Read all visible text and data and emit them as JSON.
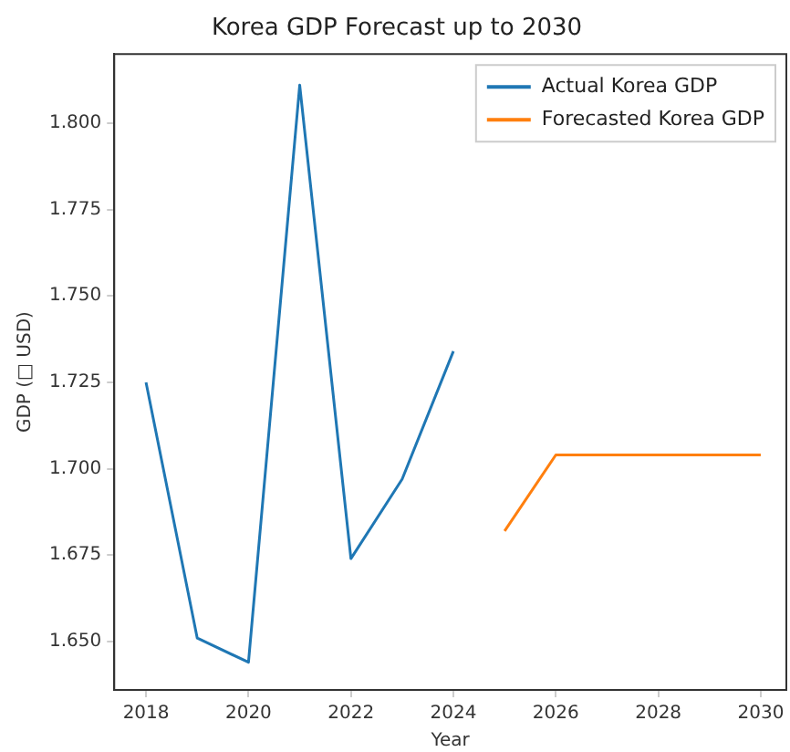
{
  "chart_data": {
    "type": "line",
    "title": "Korea GDP Forecast up to 2030",
    "xlabel": "Year",
    "ylabel": "GDP (□ USD)",
    "xlim": [
      2017.38,
      2030.5
    ],
    "xticks": [
      2018,
      2020,
      2022,
      2024,
      2026,
      2028,
      2030
    ],
    "ylim": [
      1.636,
      1.82
    ],
    "yticks": [
      {
        "value": 1.65,
        "label": "1.650"
      },
      {
        "value": 1.675,
        "label": "1.675"
      },
      {
        "value": 1.7,
        "label": "1.700"
      },
      {
        "value": 1.725,
        "label": "1.725"
      },
      {
        "value": 1.75,
        "label": "1.750"
      },
      {
        "value": 1.775,
        "label": "1.775"
      },
      {
        "value": 1.8,
        "label": "1.800"
      }
    ],
    "grid": false,
    "legend": "top right",
    "marker": "none",
    "line_style": "solid",
    "series": [
      {
        "name": "Actual Korea GDP",
        "color": "#1f77b4",
        "x": [
          2018,
          2019,
          2020,
          2021,
          2022,
          2023,
          2024
        ],
        "values": [
          1.725,
          1.651,
          1.644,
          1.811,
          1.674,
          1.697,
          1.734
        ]
      },
      {
        "name": "Forecasted Korea GDP",
        "color": "#ff7f0e",
        "x": [
          2025,
          2026,
          2027,
          2028,
          2029,
          2030
        ],
        "values": [
          1.682,
          1.704,
          1.704,
          1.704,
          1.704,
          1.704
        ]
      }
    ]
  }
}
